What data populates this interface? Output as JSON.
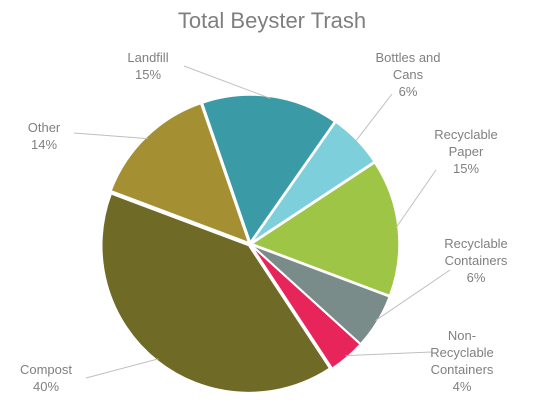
{
  "chart_data": {
    "type": "pie",
    "title": "Total Beyster Trash",
    "slices": [
      {
        "name": "Landfill",
        "label_lines": [
          "Landfill"
        ],
        "value": 15,
        "value_label": "15%",
        "color": "#3a9aa6"
      },
      {
        "name": "Bottles and Cans",
        "label_lines": [
          "Bottles and",
          "Cans"
        ],
        "value": 6,
        "value_label": "6%",
        "color": "#7ecfdc"
      },
      {
        "name": "Recyclable Paper",
        "label_lines": [
          "Recyclable",
          "Paper"
        ],
        "value": 15,
        "value_label": "15%",
        "color": "#9ec545"
      },
      {
        "name": "Recyclable Containers",
        "label_lines": [
          "Recyclable",
          "Containers"
        ],
        "value": 6,
        "value_label": "6%",
        "color": "#7a8c8a"
      },
      {
        "name": "Non-Recyclable Containers",
        "label_lines": [
          "Non-",
          "Recyclable",
          "Containers"
        ],
        "value": 4,
        "value_label": "4%",
        "color": "#e8255a"
      },
      {
        "name": "Compost",
        "label_lines": [
          "Compost"
        ],
        "value": 40,
        "value_label": "40%",
        "color": "#6f6a26"
      },
      {
        "name": "Other",
        "label_lines": [
          "Other"
        ],
        "value": 14,
        "value_label": "14%",
        "color": "#a48f32"
      }
    ],
    "legend": "none"
  }
}
